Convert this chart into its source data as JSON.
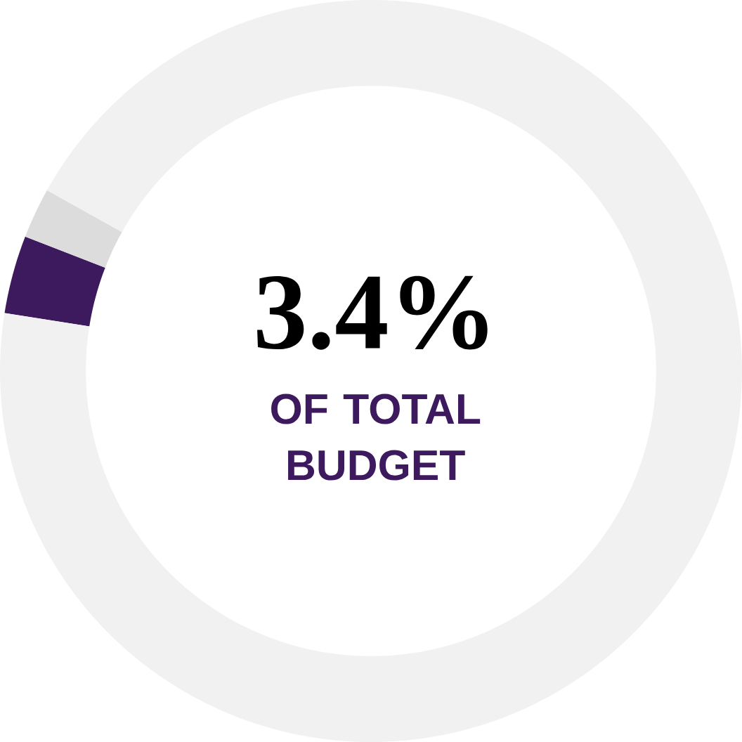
{
  "chart_data": {
    "type": "donut",
    "categories": [
      null,
      null,
      null
    ],
    "values": [
      3.4,
      2.2,
      94.4
    ],
    "colors": [
      "#3d1a5e",
      "#dcdcdc",
      "#f1f1f1"
    ],
    "annotations": [
      "3.4%",
      "OF TOTAL BUDGET"
    ]
  }
}
